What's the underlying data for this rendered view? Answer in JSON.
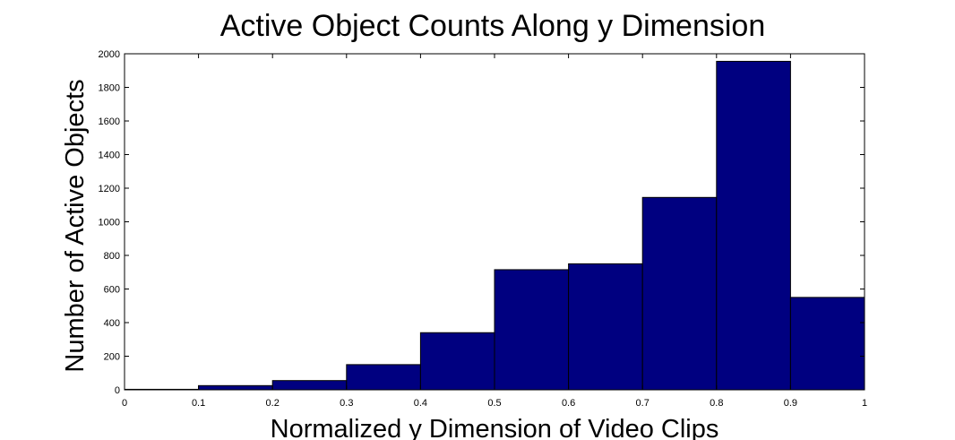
{
  "chart_data": {
    "type": "bar",
    "title": "Active Object Counts Along y Dimension",
    "xlabel": "Normalized y Dimension of Video Clips",
    "ylabel": "Number of Active Objects",
    "bin_edges": [
      0,
      0.1,
      0.2,
      0.3,
      0.4,
      0.5,
      0.6,
      0.7,
      0.8,
      0.9,
      1
    ],
    "values": [
      3,
      25,
      55,
      150,
      340,
      715,
      750,
      1145,
      1955,
      550
    ],
    "xlim": [
      0,
      1
    ],
    "ylim": [
      0,
      2000
    ],
    "xticks": [
      0,
      0.1,
      0.2,
      0.3,
      0.4,
      0.5,
      0.6,
      0.7,
      0.8,
      0.9,
      1
    ],
    "xtick_labels": [
      "0",
      "0.1",
      "0.2",
      "0.3",
      "0.4",
      "0.5",
      "0.6",
      "0.7",
      "0.8",
      "0.9",
      "1"
    ],
    "yticks": [
      0,
      200,
      400,
      600,
      800,
      1000,
      1200,
      1400,
      1600,
      1800,
      2000
    ],
    "ytick_labels": [
      "0",
      "200",
      "400",
      "600",
      "800",
      "1000",
      "1200",
      "1400",
      "1600",
      "1800",
      "2000"
    ],
    "grid": false,
    "bar_color": "#000080",
    "edge_color": "#000000"
  }
}
